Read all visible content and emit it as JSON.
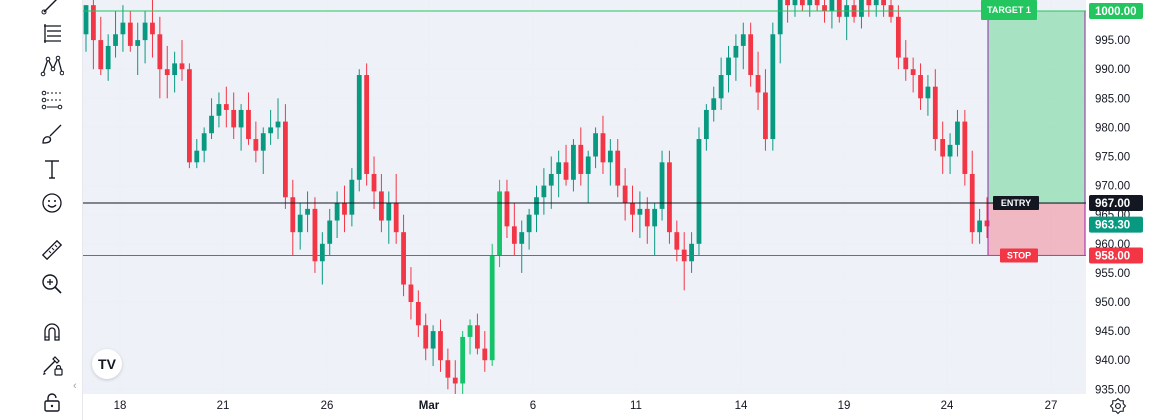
{
  "toolbar": {
    "tools": [
      {
        "name": "trend-line-icon"
      },
      {
        "name": "fib-retracement-icon"
      },
      {
        "name": "pattern-icon"
      },
      {
        "name": "prediction-icon"
      },
      {
        "name": "brush-icon"
      },
      {
        "name": "text-icon"
      },
      {
        "name": "emoji-icon"
      },
      {
        "name": "ruler-icon"
      },
      {
        "name": "zoom-in-icon"
      },
      {
        "name": "magnet-icon"
      },
      {
        "name": "lock-drawing-icon"
      },
      {
        "name": "lock-icon"
      }
    ],
    "collapse_glyph": "‹"
  },
  "logo_text": "TV",
  "chart_data": {
    "type": "candlestick",
    "ylim": [
      933,
      1002
    ],
    "y_ticks": [
      "1000.00",
      "995.00",
      "990.00",
      "985.00",
      "980.00",
      "975.00",
      "970.00",
      "965.00",
      "960.00",
      "955.00",
      "950.00",
      "945.00",
      "940.00",
      "935.00"
    ],
    "x_tick_labels": [
      "18",
      "21",
      "26",
      "Mar",
      "6",
      "11",
      "14",
      "19",
      "24",
      "27"
    ],
    "levels": {
      "target": {
        "label": "TARGET 1",
        "price": 1000.0,
        "price_text": "1000.00",
        "color": "#22c55e"
      },
      "entry": {
        "label": "ENTRY",
        "price": 967.0,
        "price_text": "967.00",
        "color": "#131722"
      },
      "stop": {
        "label": "STOP",
        "price": 958.0,
        "price_text": "958.00",
        "color": "#f23645"
      },
      "current": {
        "price": 963.3,
        "price_text": "963.30",
        "color": "#089981"
      }
    },
    "colors": {
      "up": "#089981",
      "up_bright": "#16c26a",
      "down": "#f23645",
      "grid": "#eef0f5",
      "bg": "#eef1f8"
    },
    "candles": [
      [
        996,
        1001,
        993,
        1001
      ],
      [
        1001,
        1003,
        990,
        995
      ],
      [
        995,
        999,
        989,
        990
      ],
      [
        990,
        996,
        988,
        994
      ],
      [
        994,
        1000,
        992,
        996
      ],
      [
        996,
        1001,
        993,
        998
      ],
      [
        998,
        1000,
        993,
        994
      ],
      [
        994,
        998,
        989,
        995
      ],
      [
        995,
        1000,
        991,
        998
      ],
      [
        998,
        1002,
        992,
        996
      ],
      [
        996,
        999,
        985,
        990
      ],
      [
        990,
        994,
        985,
        989
      ],
      [
        989,
        993,
        986,
        991
      ],
      [
        991,
        995,
        988,
        990
      ],
      [
        990,
        991,
        973,
        974
      ],
      [
        974,
        978,
        973,
        976
      ],
      [
        976,
        980,
        974,
        979
      ],
      [
        979,
        985,
        978,
        982
      ],
      [
        982,
        986,
        980,
        984
      ],
      [
        984,
        987,
        980,
        983
      ],
      [
        983,
        986,
        978,
        980
      ],
      [
        980,
        984,
        976,
        983
      ],
      [
        983,
        986,
        977,
        978
      ],
      [
        978,
        981,
        974,
        976
      ],
      [
        976,
        980,
        972,
        979
      ],
      [
        979,
        983,
        977,
        980
      ],
      [
        980,
        985,
        978,
        981
      ],
      [
        981,
        984,
        966,
        968
      ],
      [
        968,
        971,
        958,
        962
      ],
      [
        962,
        967,
        959,
        965
      ],
      [
        965,
        969,
        962,
        966
      ],
      [
        966,
        968,
        955,
        957
      ],
      [
        957,
        962,
        953,
        960
      ],
      [
        960,
        966,
        958,
        964
      ],
      [
        964,
        969,
        961,
        967
      ],
      [
        967,
        970,
        962,
        965
      ],
      [
        965,
        973,
        963,
        971
      ],
      [
        971,
        990,
        969,
        989
      ],
      [
        989,
        991,
        970,
        972
      ],
      [
        972,
        975,
        966,
        969
      ],
      [
        969,
        972,
        962,
        964
      ],
      [
        964,
        969,
        960,
        967
      ],
      [
        967,
        972,
        960,
        962
      ],
      [
        962,
        965,
        951,
        953
      ],
      [
        953,
        956,
        947,
        950
      ],
      [
        950,
        952,
        944,
        946
      ],
      [
        946,
        948,
        940,
        942
      ],
      [
        942,
        946,
        939,
        945
      ],
      [
        945,
        947,
        938,
        940
      ],
      [
        940,
        942,
        935,
        937
      ],
      [
        937,
        940,
        934,
        936
      ],
      [
        936,
        945,
        934,
        944
      ],
      [
        944,
        947,
        941,
        946
      ],
      [
        946,
        948,
        941,
        942
      ],
      [
        942,
        945,
        938,
        940
      ],
      [
        940,
        960,
        939,
        958
      ],
      [
        958,
        971,
        956,
        969
      ],
      [
        969,
        971,
        961,
        963
      ],
      [
        963,
        967,
        958,
        960
      ],
      [
        960,
        964,
        955,
        962
      ],
      [
        962,
        966,
        959,
        965
      ],
      [
        965,
        970,
        962,
        968
      ],
      [
        968,
        973,
        965,
        970
      ],
      [
        970,
        975,
        966,
        972
      ],
      [
        972,
        976,
        968,
        974
      ],
      [
        974,
        977,
        970,
        971
      ],
      [
        971,
        978,
        969,
        977
      ],
      [
        977,
        980,
        970,
        972
      ],
      [
        972,
        976,
        967,
        975
      ],
      [
        975,
        980,
        973,
        979
      ],
      [
        979,
        982,
        972,
        974
      ],
      [
        974,
        978,
        970,
        976
      ],
      [
        976,
        978,
        968,
        970
      ],
      [
        970,
        973,
        964,
        967
      ],
      [
        967,
        970,
        962,
        965
      ],
      [
        965,
        969,
        961,
        966
      ],
      [
        966,
        968,
        960,
        963
      ],
      [
        963,
        967,
        958,
        966
      ],
      [
        966,
        976,
        964,
        974
      ],
      [
        974,
        976,
        960,
        962
      ],
      [
        962,
        964,
        957,
        959
      ],
      [
        959,
        962,
        952,
        957
      ],
      [
        957,
        962,
        955,
        960
      ],
      [
        960,
        980,
        958,
        978
      ],
      [
        978,
        984,
        976,
        983
      ],
      [
        983,
        987,
        981,
        985
      ],
      [
        985,
        992,
        983,
        989
      ],
      [
        989,
        994,
        986,
        992
      ],
      [
        992,
        996,
        988,
        994
      ],
      [
        994,
        998,
        990,
        996
      ],
      [
        996,
        998,
        987,
        989
      ],
      [
        989,
        993,
        983,
        986
      ],
      [
        986,
        990,
        976,
        978
      ],
      [
        978,
        998,
        976,
        996
      ],
      [
        996,
        1003,
        991,
        1002
      ],
      [
        1002,
        1004,
        998,
        1001
      ],
      [
        1001,
        1003,
        999,
        1002
      ],
      [
        1002,
        1004,
        1000,
        1001
      ],
      [
        1001,
        1003,
        999,
        1002
      ],
      [
        1002,
        1004,
        1000,
        1001
      ],
      [
        1001,
        1003,
        998,
        1000
      ],
      [
        1000,
        1003,
        997,
        1002
      ],
      [
        1002,
        1004,
        998,
        999
      ],
      [
        999,
        1002,
        995,
        1001
      ],
      [
        1001,
        1003,
        998,
        999
      ],
      [
        999,
        1004,
        997,
        1002
      ],
      [
        1002,
        1004,
        999,
        1001
      ],
      [
        1001,
        1003,
        999,
        1002
      ],
      [
        1002,
        1004,
        999,
        1001
      ],
      [
        1001,
        1003,
        998,
        999
      ],
      [
        999,
        1001,
        990,
        992
      ],
      [
        992,
        995,
        988,
        990
      ],
      [
        990,
        992,
        986,
        989
      ],
      [
        989,
        991,
        983,
        985
      ],
      [
        985,
        989,
        982,
        987
      ],
      [
        987,
        990,
        976,
        978
      ],
      [
        978,
        981,
        972,
        975
      ],
      [
        975,
        979,
        972,
        977
      ],
      [
        977,
        983,
        975,
        981
      ],
      [
        981,
        983,
        970,
        972
      ],
      [
        972,
        976,
        960,
        962
      ],
      [
        962,
        966,
        960,
        964
      ],
      [
        964,
        968,
        961,
        963
      ]
    ]
  }
}
